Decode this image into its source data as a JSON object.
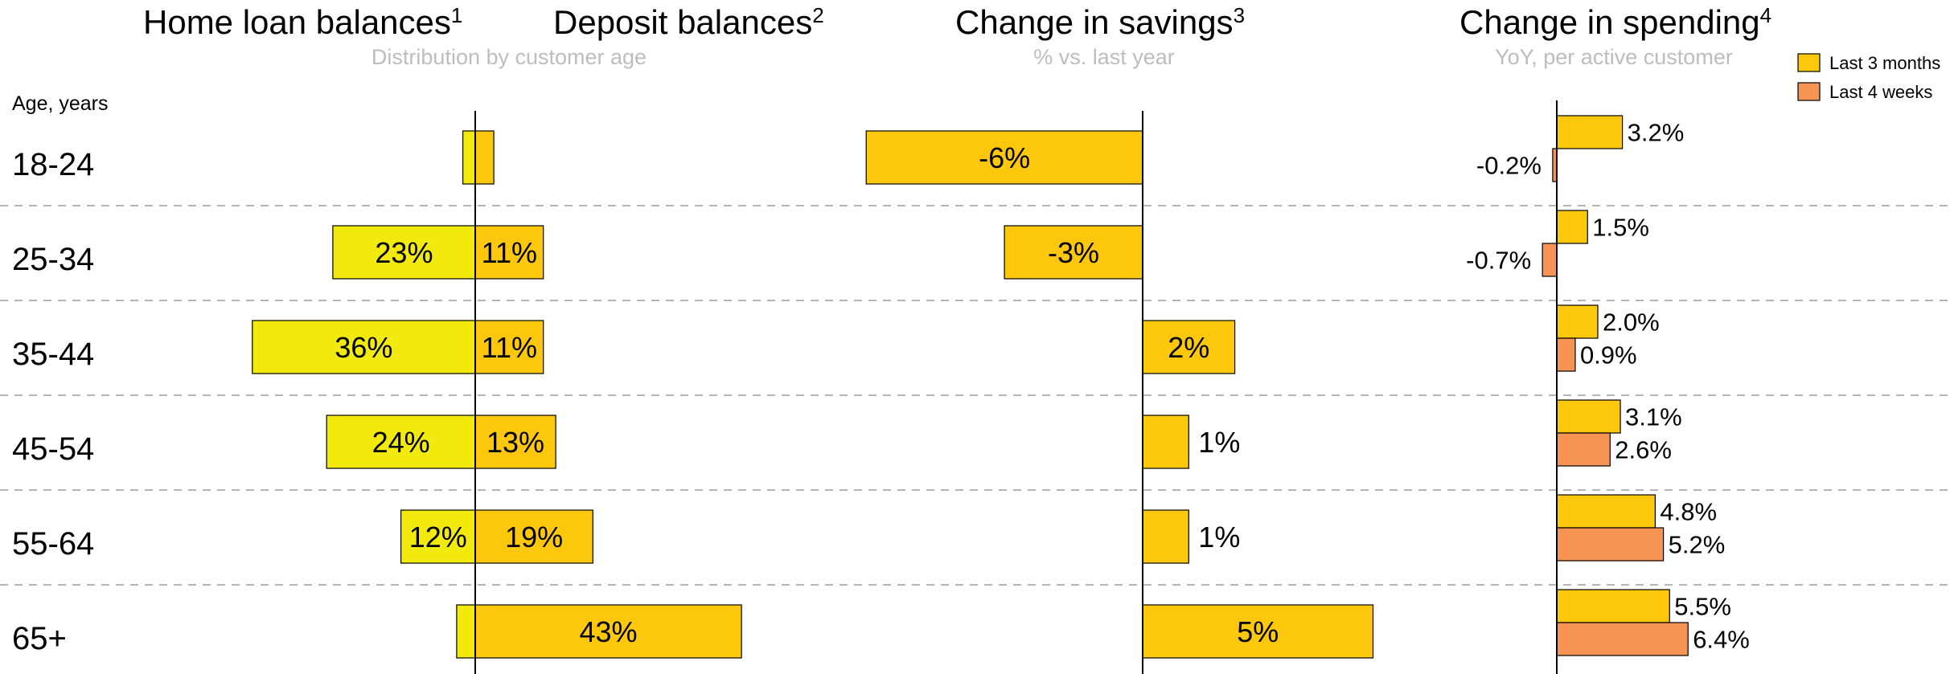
{
  "colors": {
    "home_loan": "#f2ea0c",
    "deposit": "#fdc70c",
    "savings": "#fdc70c",
    "last_3_months": "#fdc70c",
    "last_4_weeks": "#f79353",
    "separator": "#b5b5b5",
    "subtitle": "#bdbdbd"
  },
  "headers": {
    "home_loan": {
      "text": "Home loan balances",
      "sup": "1"
    },
    "deposit": {
      "text": "Deposit balances",
      "sup": "2"
    },
    "distribution_subtitle": "Distribution by customer age",
    "savings": {
      "text": "Change in savings",
      "sup": "3"
    },
    "savings_subtitle": "% vs. last year",
    "spending": {
      "text": "Change in spending",
      "sup": "4"
    },
    "spending_subtitle": "YoY, per active customer"
  },
  "axis_label": "Age, years",
  "legend": [
    {
      "label": "Last 3 months",
      "color_key": "last_3_months"
    },
    {
      "label": "Last 4 weeks",
      "color_key": "last_4_weeks"
    }
  ],
  "chart_data": [
    {
      "type": "bar",
      "orientation": "horizontal-diverging",
      "categories": [
        "18-24",
        "25-34",
        "35-44",
        "45-54",
        "55-64",
        "65+"
      ],
      "series": [
        {
          "name": "Home loan balances",
          "values": [
            2,
            23,
            36,
            24,
            12,
            3
          ],
          "labels": [
            "",
            "23%",
            "36%",
            "24%",
            "12%",
            ""
          ]
        },
        {
          "name": "Deposit balances",
          "values": [
            3,
            11,
            11,
            13,
            19,
            43
          ],
          "labels": [
            "",
            "11%",
            "11%",
            "13%",
            "19%",
            "43%"
          ]
        }
      ],
      "title": "Distribution by customer age",
      "unit": "%"
    },
    {
      "type": "bar",
      "orientation": "horizontal",
      "categories": [
        "18-24",
        "25-34",
        "35-44",
        "45-54",
        "55-64",
        "65+"
      ],
      "values": [
        -6,
        -3,
        2,
        1,
        1,
        5
      ],
      "labels": [
        "-6%",
        "-3%",
        "2%",
        "1%",
        "1%",
        "5%"
      ],
      "title": "Change in savings",
      "subtitle": "% vs. last year",
      "unit": "%"
    },
    {
      "type": "bar",
      "orientation": "horizontal-grouped",
      "categories": [
        "18-24",
        "25-34",
        "35-44",
        "45-54",
        "55-64",
        "65+"
      ],
      "series": [
        {
          "name": "Last 3 months",
          "values": [
            3.2,
            1.5,
            2.0,
            3.1,
            4.8,
            5.5
          ],
          "labels": [
            "3.2%",
            "1.5%",
            "2.0%",
            "3.1%",
            "4.8%",
            "5.5%"
          ]
        },
        {
          "name": "Last 4 weeks",
          "values": [
            -0.2,
            -0.7,
            0.9,
            2.6,
            5.2,
            6.4
          ],
          "labels": [
            "-0.2%",
            "-0.7%",
            "0.9%",
            "2.6%",
            "5.2%",
            "6.4%"
          ]
        }
      ],
      "title": "Change in spending",
      "subtitle": "YoY, per active customer",
      "legend": "top-right",
      "unit": "%"
    }
  ]
}
